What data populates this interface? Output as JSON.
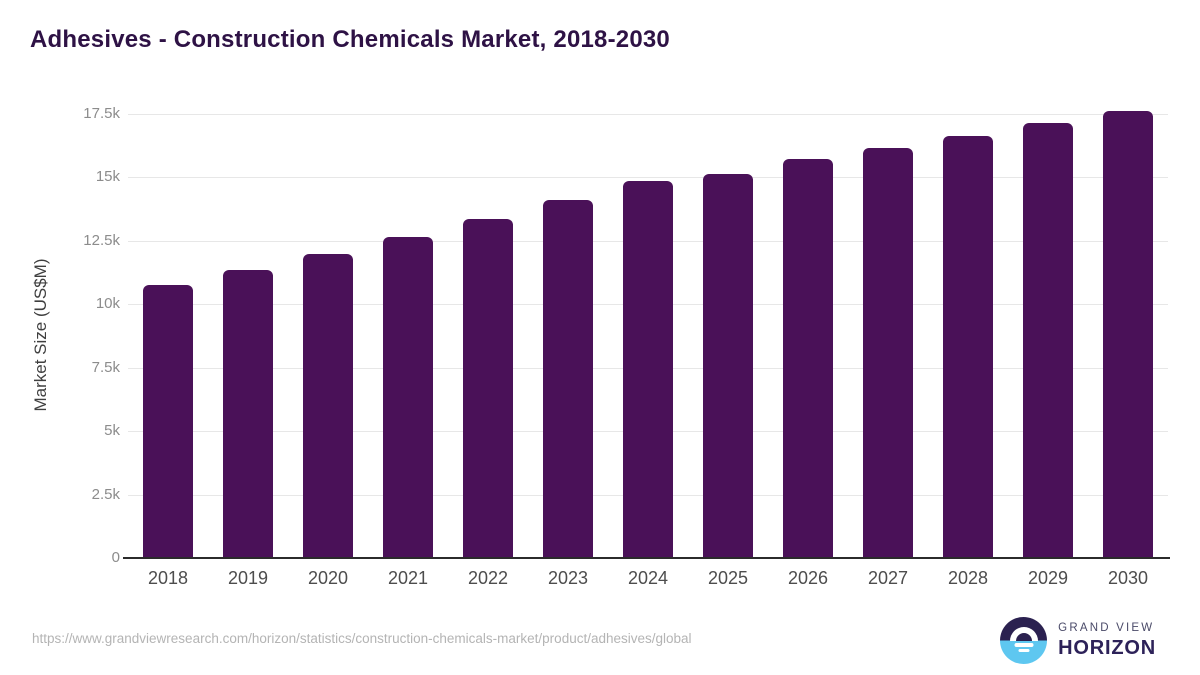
{
  "footer": {
    "source_url": "https://www.grandviewresearch.com/horizon/statistics/construction-chemicals-market/product/adhesives/global",
    "brand_top": "GRAND VIEW",
    "brand_bottom": "HORIZON"
  },
  "colors": {
    "bar": "#4a1158",
    "title": "#2e1245",
    "gridline": "#e7e7e7",
    "logo_top": "#2b2150",
    "logo_bottom": "#5ec7f0"
  },
  "chart_data": {
    "type": "bar",
    "title": "Adhesives - Construction Chemicals Market, 2018-2030",
    "xlabel": "",
    "ylabel": "Market Size (US$M)",
    "categories": [
      "2018",
      "2019",
      "2020",
      "2021",
      "2022",
      "2023",
      "2024",
      "2025",
      "2026",
      "2027",
      "2028",
      "2029",
      "2030"
    ],
    "values": [
      10730,
      11320,
      11970,
      12640,
      13330,
      14080,
      14830,
      15110,
      15690,
      16160,
      16630,
      17120,
      17600
    ],
    "ytick_values": [
      0,
      2500,
      5000,
      7500,
      10000,
      12500,
      15000,
      17500
    ],
    "ytick_labels": [
      "0",
      "2.5k",
      "5k",
      "7.5k",
      "10k",
      "12.5k",
      "15k",
      "17.5k"
    ],
    "ylim": [
      0,
      17750
    ],
    "grid": true,
    "legend": "none"
  }
}
